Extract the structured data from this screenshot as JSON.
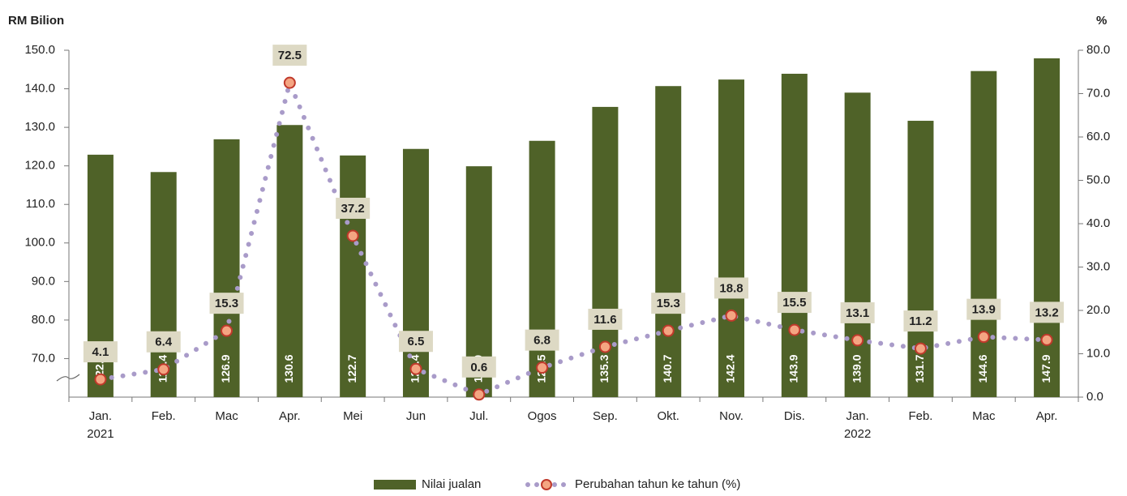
{
  "chart_data": {
    "type": "bar_line",
    "y_axis_label": "RM Bilion",
    "y2_axis_label": "%",
    "categories": [
      "Jan. 2021",
      "Feb.",
      "Mac",
      "Apr.",
      "Mei",
      "Jun",
      "Jul.",
      "Ogos",
      "Sep.",
      "Okt.",
      "Nov.",
      "Dis.",
      "Jan. 2022",
      "Feb.",
      "Mac",
      "Apr."
    ],
    "ylim": [
      60,
      150
    ],
    "yticks": [
      {
        "value": 70,
        "label": "70.0"
      },
      {
        "value": 80,
        "label": "80.0"
      },
      {
        "value": 90,
        "label": "90.0"
      },
      {
        "value": 100,
        "label": "100.0"
      },
      {
        "value": 110,
        "label": "110.0"
      },
      {
        "value": 120,
        "label": "120.0"
      },
      {
        "value": 130,
        "label": "130.0"
      },
      {
        "value": 140,
        "label": "140.0"
      },
      {
        "value": 150,
        "label": "150.0"
      }
    ],
    "y2lim": [
      0,
      80
    ],
    "y2ticks": [
      {
        "value": 0,
        "label": "0.0"
      },
      {
        "value": 10,
        "label": "10.0"
      },
      {
        "value": 20,
        "label": "20.0"
      },
      {
        "value": 30,
        "label": "30.0"
      },
      {
        "value": 40,
        "label": "40.0"
      },
      {
        "value": 50,
        "label": "50.0"
      },
      {
        "value": 60,
        "label": "60.0"
      },
      {
        "value": 70,
        "label": "70.0"
      },
      {
        "value": 80,
        "label": "80.0"
      }
    ],
    "series": [
      {
        "name": "Nilai jualan",
        "type": "bar",
        "color": "#4f6228",
        "values": [
          122.9,
          118.4,
          126.9,
          130.6,
          122.7,
          124.4,
          119.9,
          126.5,
          135.3,
          140.7,
          142.4,
          143.9,
          139.0,
          131.7,
          144.6,
          147.9
        ],
        "value_labels": [
          "122.9",
          "118.4",
          "126.9",
          "130.6",
          "122.7",
          "124.4",
          "119.9",
          "126.5",
          "135.3",
          "140.7",
          "142.4",
          "143.9",
          "139.0",
          "131.7",
          "144.6",
          "147.9"
        ]
      },
      {
        "name": "Perubahan tahun ke tahun (%)",
        "type": "line",
        "axis": "y2",
        "color": "#a99bc9",
        "marker_color": "#f4a582",
        "values": [
          4.1,
          6.4,
          15.3,
          72.5,
          37.2,
          6.5,
          0.6,
          6.8,
          11.6,
          15.3,
          18.8,
          15.5,
          13.1,
          11.2,
          13.9,
          13.2
        ]
      }
    ]
  }
}
